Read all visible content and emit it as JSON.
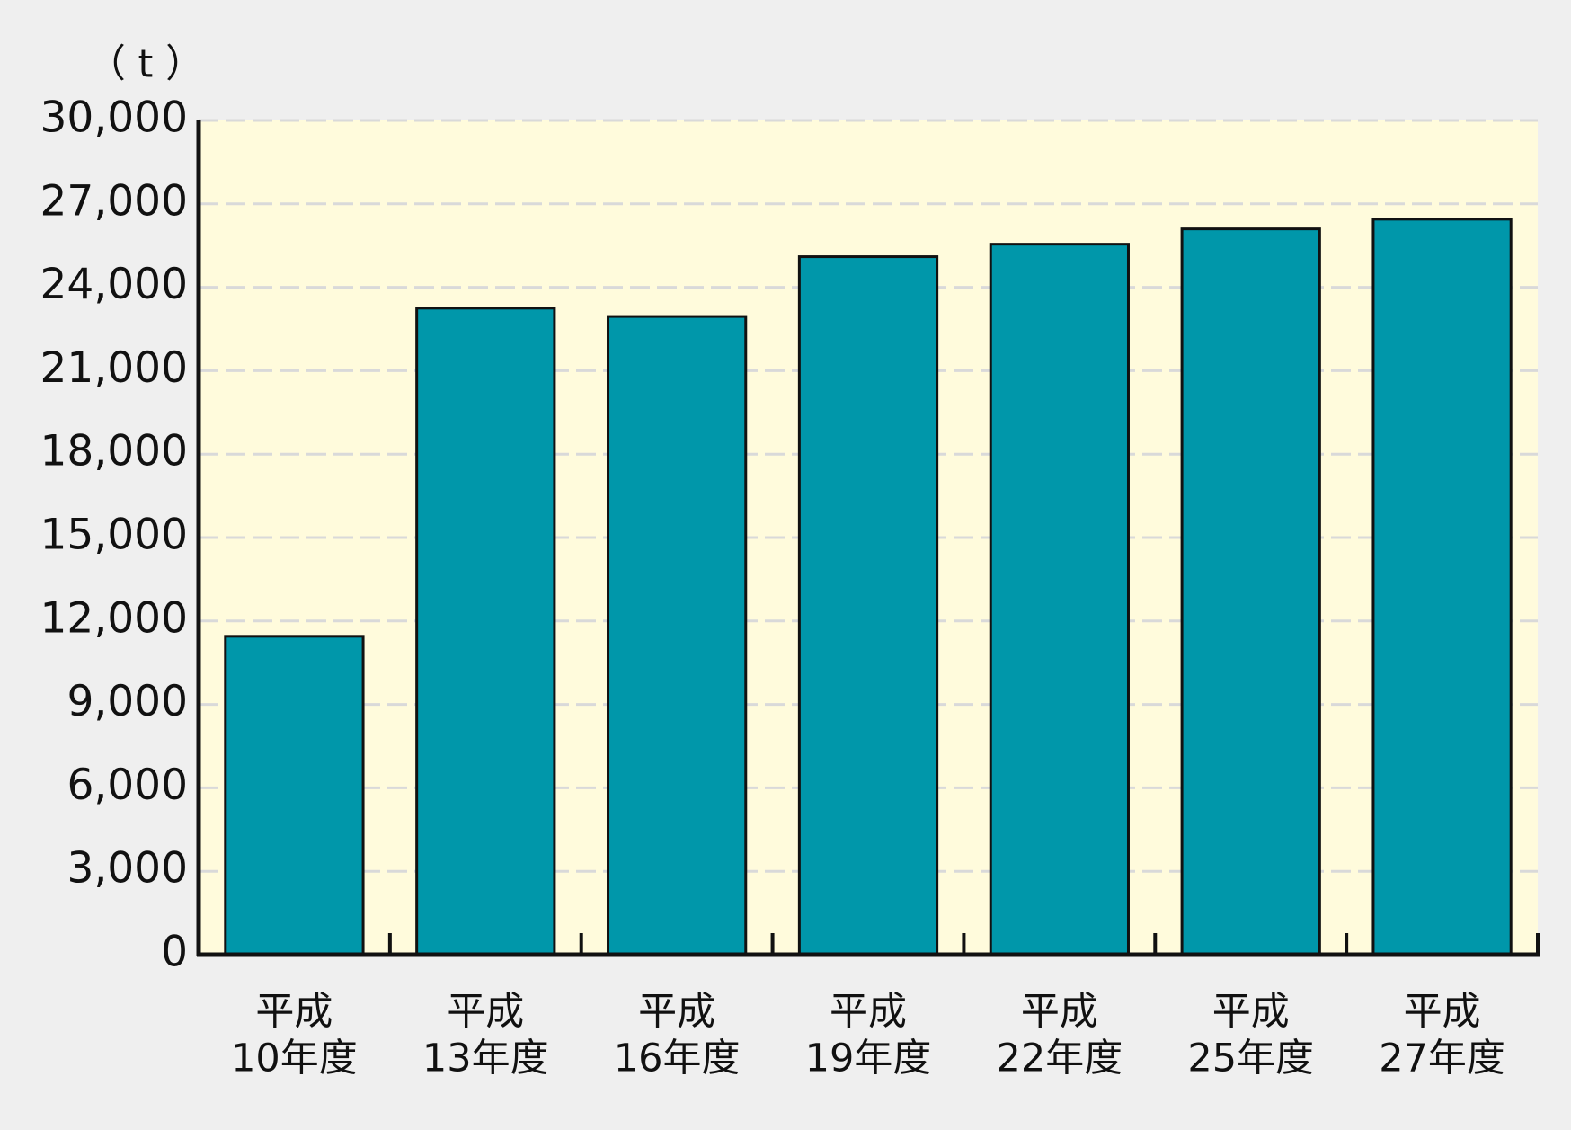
{
  "chart_data": {
    "type": "bar",
    "y_label": "（ t ）",
    "categories": [
      [
        "平成",
        "10年度"
      ],
      [
        "平成",
        "13年度"
      ],
      [
        "平成",
        "16年度"
      ],
      [
        "平成",
        "19年度"
      ],
      [
        "平成",
        "22年度"
      ],
      [
        "平成",
        "25年度"
      ],
      [
        "平成",
        "27年度"
      ]
    ],
    "values": [
      11450,
      23250,
      22950,
      25100,
      25550,
      26100,
      26450
    ],
    "color": "#0097aa",
    "ylim": [
      0,
      30000
    ],
    "yticks": [
      0,
      {
        "value": 3000,
        "label": "3,000"
      },
      {
        "value": 6000,
        "label": "6,000"
      },
      {
        "value": 9000,
        "label": "9,000"
      },
      {
        "value": 12000,
        "label": "12,000"
      },
      {
        "value": 15000,
        "label": "15,000"
      },
      {
        "value": 18000,
        "label": "18,000"
      },
      {
        "value": 21000,
        "label": "21,000"
      },
      {
        "value": 24000,
        "label": "24,000"
      },
      {
        "value": 27000,
        "label": "27,000"
      },
      {
        "value": 30000,
        "label": "30,000"
      }
    ],
    "grid": true
  }
}
